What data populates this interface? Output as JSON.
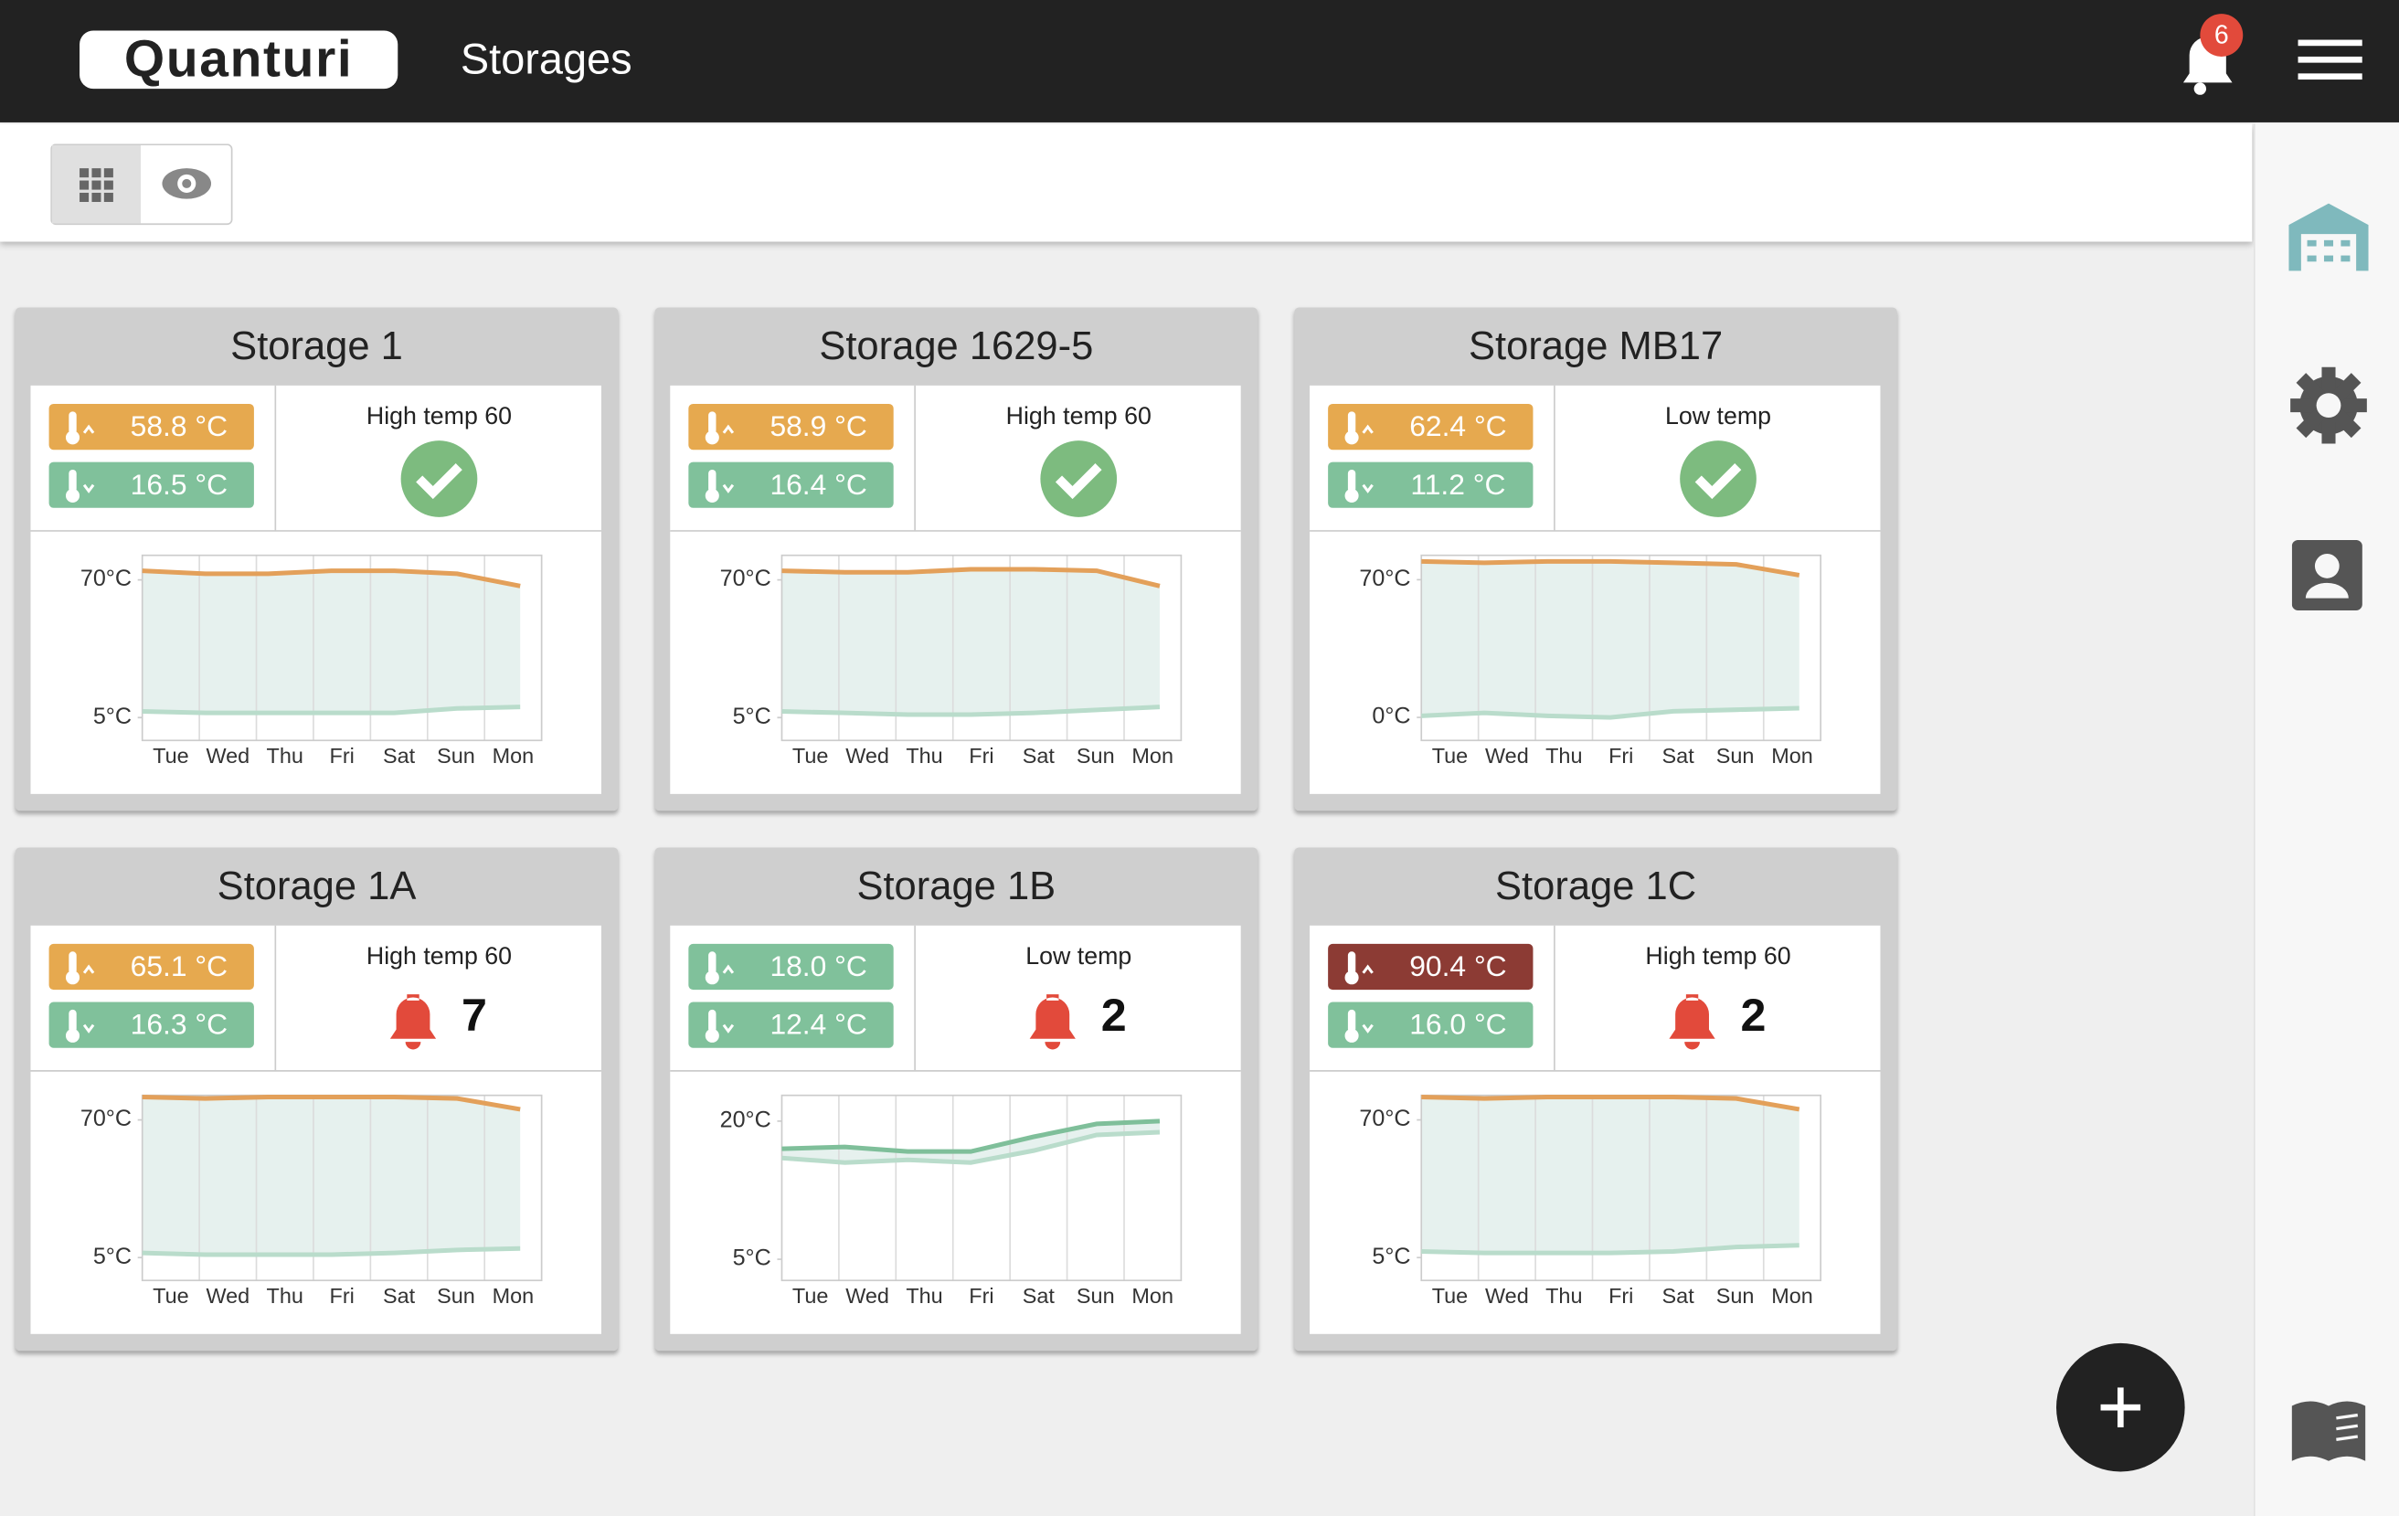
{
  "header": {
    "brand": "Quanturi",
    "title": "Storages",
    "notifications": "6"
  },
  "storages": [
    {
      "name": "Storage 1",
      "max_temp": "58.8 °C",
      "max_color": "#e6a94f",
      "min_temp": "16.5 °C",
      "min_color": "#80c19b",
      "status": "High temp 60",
      "ok": true,
      "chart": {
        "type": "line",
        "categories": [
          "Tue",
          "Wed",
          "Thu",
          "Fri",
          "Sat",
          "Sun",
          "Mon"
        ],
        "ylim": [
          -5.8,
          81.6
        ],
        "yticks": [
          {
            "value": 5,
            "label": "5°C"
          },
          {
            "value": 70,
            "label": "70°C"
          }
        ],
        "series": [
          {
            "color": "#e3a05a",
            "values": [
              74.3,
              72.9,
              72.9,
              74.3,
              74.3,
              72.9,
              67.1
            ]
          },
          {
            "color": "#b9dccb",
            "values": [
              7.9,
              7.2,
              7.2,
              7.2,
              7.2,
              9.3,
              10
            ]
          }
        ]
      }
    },
    {
      "name": "Storage 1629-5",
      "max_temp": "58.9 °C",
      "max_color": "#e6a94f",
      "min_temp": "16.4 °C",
      "min_color": "#80c19b",
      "status": "High temp 60",
      "ok": true,
      "chart": {
        "type": "line",
        "categories": [
          "Tue",
          "Wed",
          "Thu",
          "Fri",
          "Sat",
          "Sun",
          "Mon"
        ],
        "ylim": [
          -5.8,
          81.6
        ],
        "yticks": [
          {
            "value": 5,
            "label": "5°C"
          },
          {
            "value": 70,
            "label": "70°C"
          }
        ],
        "series": [
          {
            "color": "#e3a05a",
            "values": [
              74.3,
              73.6,
              73.6,
              75,
              75,
              74.3,
              67.1
            ]
          },
          {
            "color": "#b9dccb",
            "values": [
              7.9,
              7.2,
              6.4,
              6.4,
              7.2,
              8.6,
              10
            ]
          }
        ]
      }
    },
    {
      "name": "Storage MB17",
      "max_temp": "62.4 °C",
      "max_color": "#e6a94f",
      "min_temp": "11.2 °C",
      "min_color": "#80c19b",
      "status": "Low temp",
      "ok": true,
      "chart": {
        "type": "line",
        "categories": [
          "Tue",
          "Wed",
          "Thu",
          "Fri",
          "Sat",
          "Sun",
          "Mon"
        ],
        "ylim": [
          -11.7,
          82.4
        ],
        "yticks": [
          {
            "value": 0,
            "label": "0°C"
          },
          {
            "value": 70,
            "label": "70°C"
          }
        ],
        "series": [
          {
            "color": "#e3a05a",
            "values": [
              79.3,
              78.6,
              79.3,
              79.3,
              78.6,
              77.8,
              72.3
            ]
          },
          {
            "color": "#b9dccb",
            "values": [
              0.8,
              2.3,
              0.8,
              0,
              3.1,
              3.9,
              4.7
            ]
          }
        ]
      }
    },
    {
      "name": "Storage 1A",
      "max_temp": "65.1 °C",
      "max_color": "#e6a94f",
      "min_temp": "16.3 °C",
      "min_color": "#80c19b",
      "status": "High temp 60",
      "ok": false,
      "alerts": 7,
      "chart": {
        "type": "line",
        "categories": [
          "Tue",
          "Wed",
          "Thu",
          "Fri",
          "Sat",
          "Sun",
          "Mon"
        ],
        "ylim": [
          -5.8,
          81.6
        ],
        "yticks": [
          {
            "value": 5,
            "label": "5°C"
          },
          {
            "value": 70,
            "label": "70°C"
          }
        ],
        "series": [
          {
            "color": "#e3a05a",
            "values": [
              80.8,
              80.1,
              80.8,
              80.8,
              80.8,
              80.1,
              75
            ]
          },
          {
            "color": "#b9dccb",
            "values": [
              7.2,
              6.4,
              6.4,
              6.4,
              7.2,
              8.6,
              9.3
            ]
          }
        ]
      }
    },
    {
      "name": "Storage 1B",
      "max_temp": "18.0 °C",
      "max_color": "#80c19b",
      "min_temp": "12.4 °C",
      "min_color": "#80c19b",
      "status": "Low temp",
      "ok": false,
      "alerts": 2,
      "chart": {
        "type": "line",
        "categories": [
          "Tue",
          "Wed",
          "Thu",
          "Fri",
          "Sat",
          "Sun",
          "Mon"
        ],
        "ylim": [
          2.7,
          22.8
        ],
        "yticks": [
          {
            "value": 5,
            "label": "5°C"
          },
          {
            "value": 20,
            "label": "20°C"
          }
        ],
        "series": [
          {
            "color": "#7fbf9a",
            "values": [
              17,
              17.2,
              16.7,
              16.7,
              18.3,
              19.7,
              20
            ]
          },
          {
            "color": "#b9dccb",
            "values": [
              16,
              15.5,
              15.8,
              15.5,
              16.8,
              18.5,
              18.8
            ]
          }
        ]
      }
    },
    {
      "name": "Storage 1C",
      "max_temp": "90.4 °C",
      "max_color": "#8c3b34",
      "min_temp": "16.0 °C",
      "min_color": "#80c19b",
      "status": "High temp 60",
      "ok": false,
      "alerts": 2,
      "chart": {
        "type": "line",
        "categories": [
          "Tue",
          "Wed",
          "Thu",
          "Fri",
          "Sat",
          "Sun",
          "Mon"
        ],
        "ylim": [
          -5.8,
          81.6
        ],
        "yticks": [
          {
            "value": 5,
            "label": "5°C"
          },
          {
            "value": 70,
            "label": "70°C"
          }
        ],
        "series": [
          {
            "color": "#e3a05a",
            "values": [
              80.8,
              80.1,
              80.8,
              80.8,
              80.8,
              80.1,
              75
            ]
          },
          {
            "color": "#b9dccb",
            "values": [
              7.9,
              7.2,
              7.2,
              7.2,
              7.9,
              10,
              10.8
            ]
          }
        ]
      }
    }
  ]
}
